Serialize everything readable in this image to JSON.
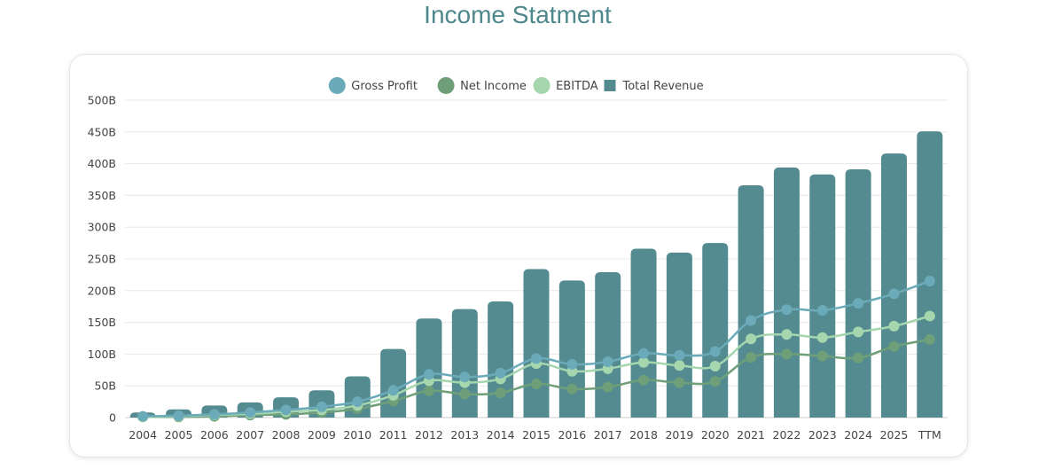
{
  "page": {
    "title": "Income Statment"
  },
  "colors": {
    "gross_profit": "#6aaab9",
    "net_income": "#6e9f78",
    "ebitda": "#a5d6ae",
    "total_revenue": "#548b90",
    "title": "#4e878c",
    "grid": "#e8e8e8",
    "axis": "#cccccc"
  },
  "chart_data": {
    "type": "bar",
    "title": "",
    "xlabel": "",
    "ylabel": "",
    "ylim": [
      0,
      500
    ],
    "grid": true,
    "legend_position": "top-center",
    "y_ticks": [
      "0",
      "50B",
      "100B",
      "150B",
      "200B",
      "250B",
      "300B",
      "350B",
      "400B",
      "450B",
      "500B"
    ],
    "categories": [
      "2004",
      "2005",
      "2006",
      "2007",
      "2008",
      "2009",
      "2010",
      "2011",
      "2012",
      "2013",
      "2014",
      "2015",
      "2016",
      "2017",
      "2018",
      "2019",
      "2020",
      "2021",
      "2022",
      "2023",
      "2024",
      "2025",
      "TTM"
    ],
    "series": [
      {
        "name": "Gross Profit",
        "type": "line",
        "values": [
          2,
          3,
          5,
          8,
          12,
          17,
          25,
          43,
          68,
          64,
          70,
          93,
          84,
          88,
          101,
          98,
          104,
          153,
          170,
          169,
          180,
          195,
          215
        ]
      },
      {
        "name": "Net Income",
        "type": "line",
        "values": [
          1,
          1,
          2,
          4,
          5,
          8,
          14,
          26,
          42,
          37,
          39,
          53,
          45,
          48,
          59,
          55,
          57,
          95,
          100,
          97,
          94,
          112,
          123
        ]
      },
      {
        "name": "EBITDA",
        "type": "line",
        "values": [
          1,
          2,
          4,
          6,
          9,
          12,
          19,
          35,
          58,
          55,
          61,
          85,
          73,
          77,
          87,
          82,
          81,
          124,
          131,
          126,
          135,
          144,
          160
        ]
      },
      {
        "name": "Total Revenue",
        "type": "bar",
        "values": [
          8,
          13,
          19,
          24,
          32,
          43,
          65,
          108,
          156,
          171,
          183,
          234,
          216,
          229,
          266,
          260,
          275,
          366,
          394,
          383,
          391,
          416,
          451
        ]
      }
    ]
  }
}
